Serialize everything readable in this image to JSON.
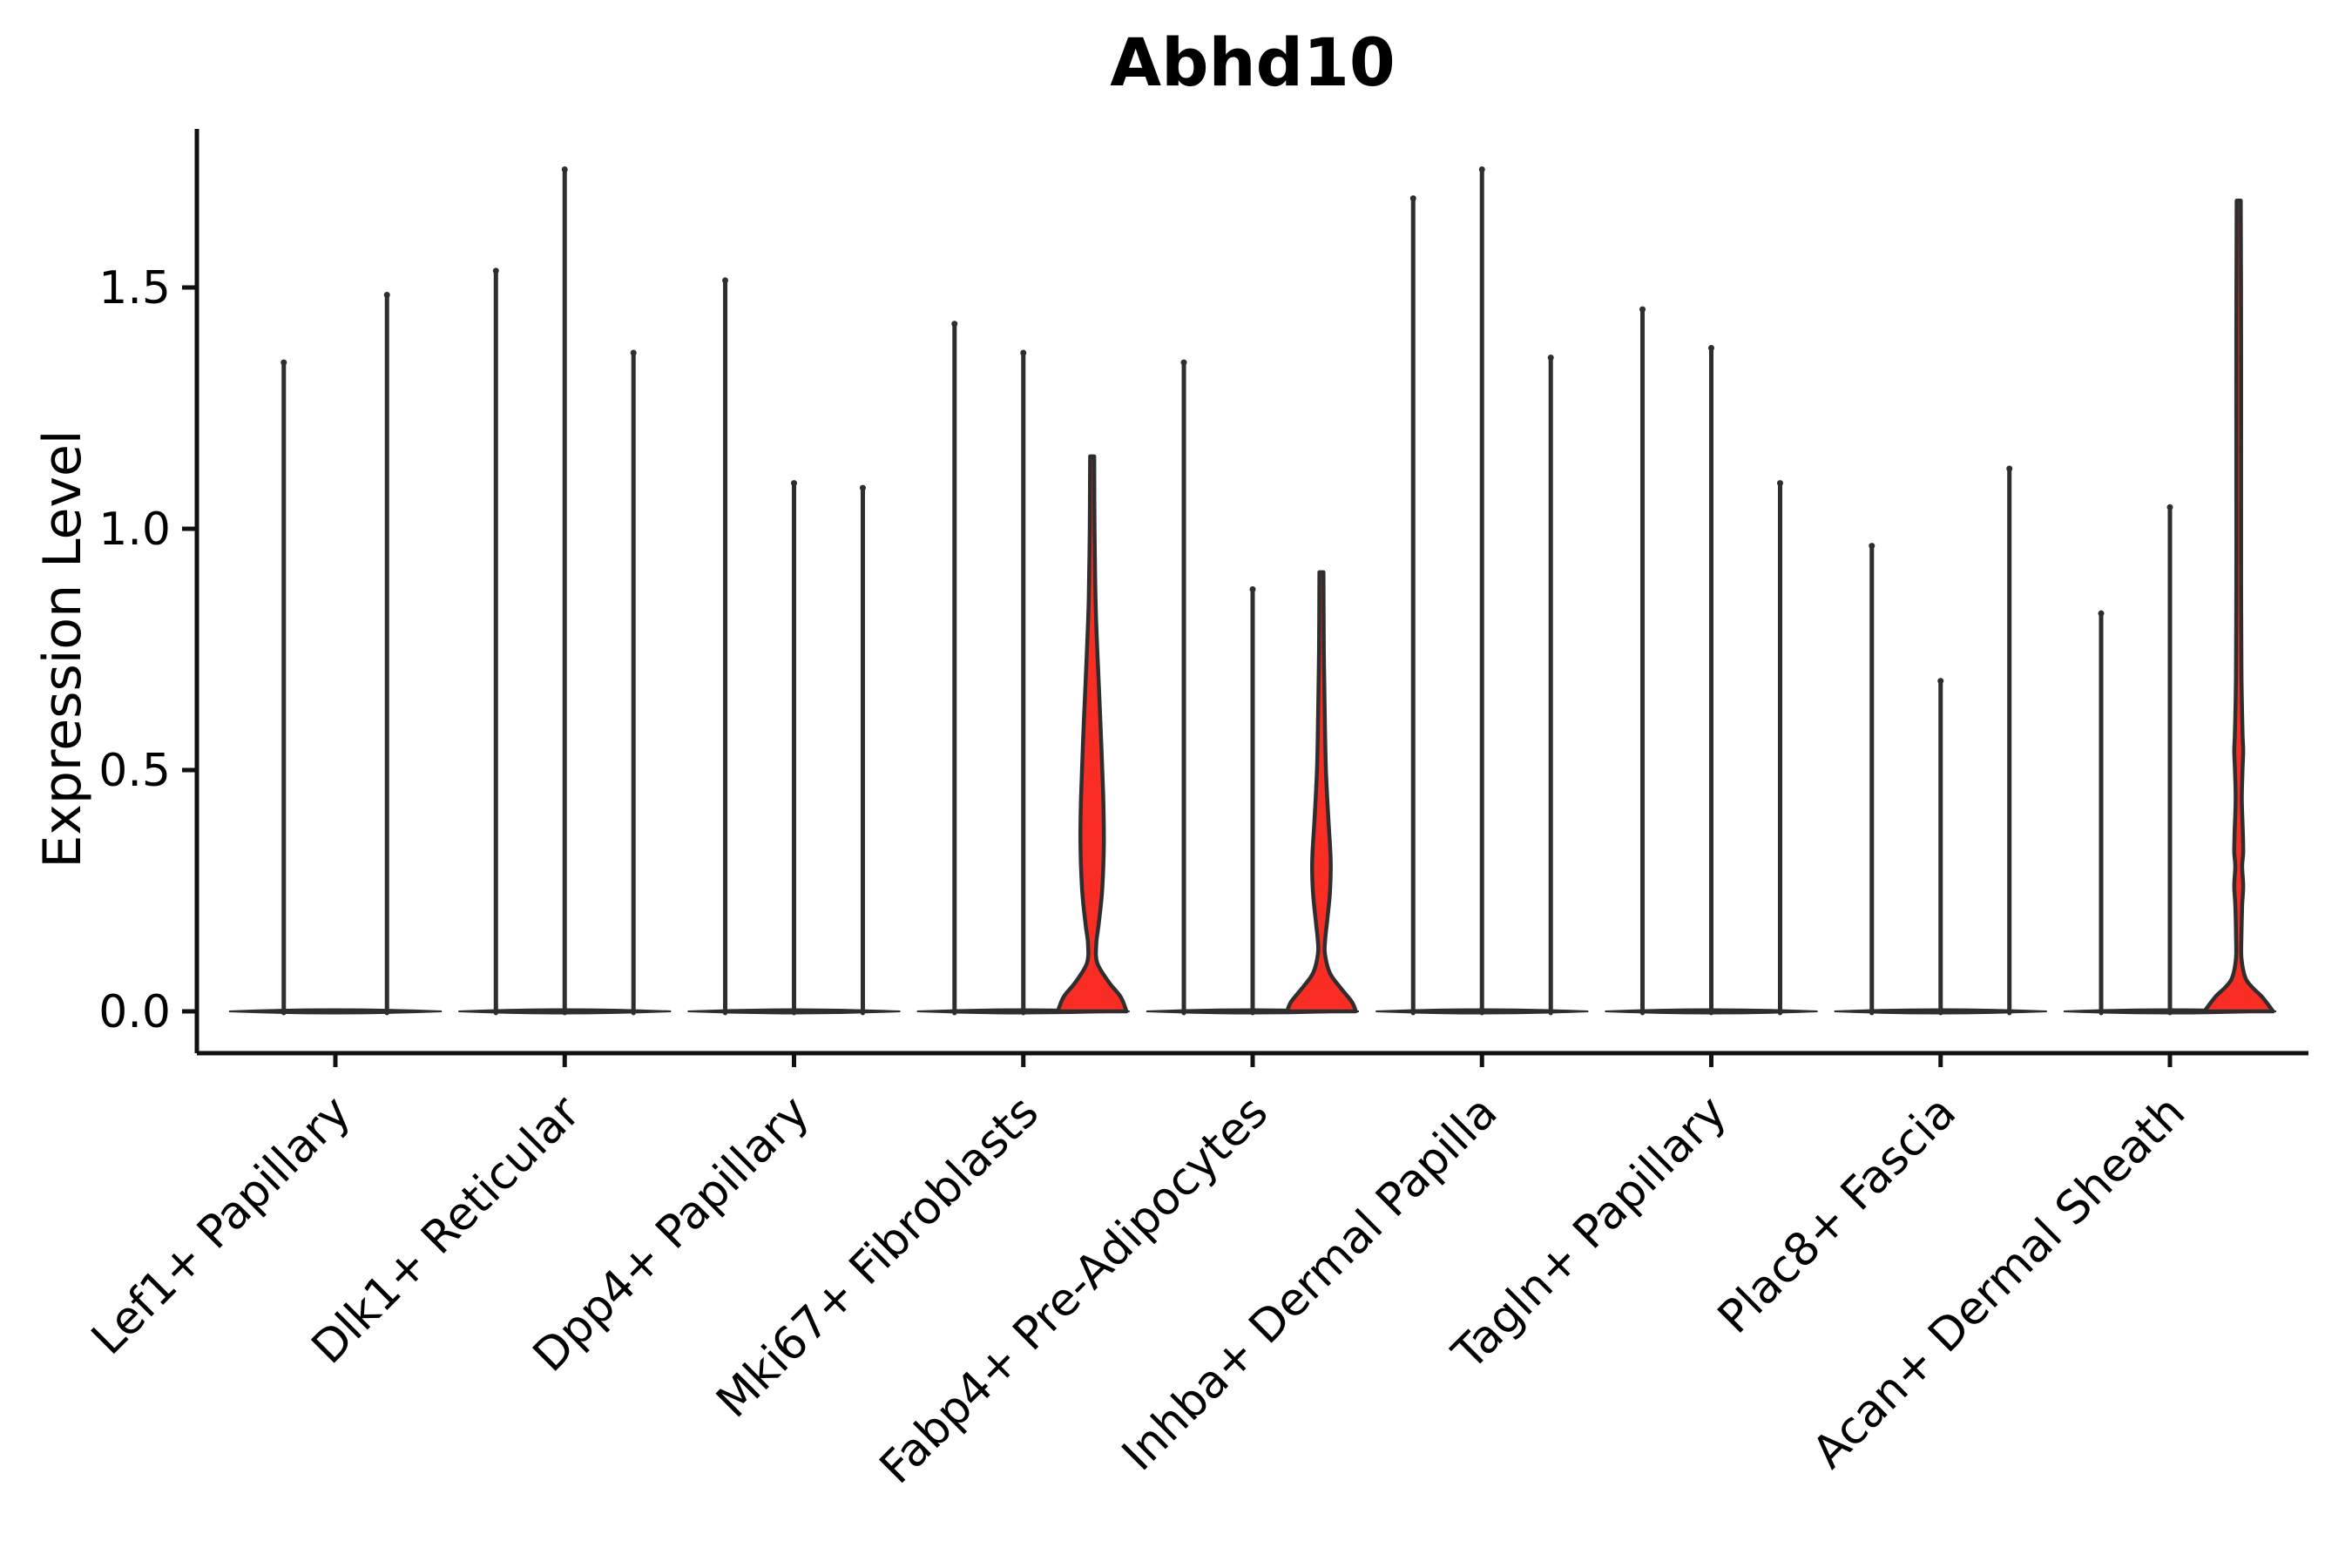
{
  "figure": {
    "title": "Abhd10",
    "ylabel": "Expression Level",
    "background": "#ffffff"
  },
  "colors": {
    "violin_outline": "#2e2e2e",
    "violin_fill_red": "#fa2d25",
    "axis": "#111111",
    "text": "#000000"
  },
  "chart_data": {
    "type": "violin",
    "title": "Abhd10",
    "xlabel": "",
    "ylabel": "Expression Level",
    "yticks": [
      "0.0",
      "0.5",
      "1.0",
      "1.5"
    ],
    "ytick_values": [
      0.0,
      0.5,
      1.0,
      1.5
    ],
    "ylim": [
      -0.09,
      1.83
    ],
    "grid": false,
    "legend": "none",
    "categories": [
      "Lef1+ Papillary",
      "Dlk1+ Reticular",
      "Dpp4+ Papillary",
      "Mki67+ Fibroblasts",
      "Fabp4+ Pre-Adipocytes",
      "Inhba+ Dermal Papilla",
      "Tagln+ Papillary",
      "Plac8+ Fascia",
      "Acan+ Dermal Sheath"
    ],
    "groups": [
      {
        "category": "Lef1+ Papillary",
        "violins": [
          {
            "max": 1.35,
            "fill": "none"
          },
          {
            "max": 1.49,
            "fill": "none"
          }
        ]
      },
      {
        "category": "Dlk1+ Reticular",
        "violins": [
          {
            "max": 1.54,
            "fill": "none"
          },
          {
            "max": 1.75,
            "fill": "none"
          },
          {
            "max": 1.37,
            "fill": "none"
          }
        ]
      },
      {
        "category": "Dpp4+ Papillary",
        "violins": [
          {
            "max": 1.52,
            "fill": "none"
          },
          {
            "max": 1.1,
            "fill": "none"
          },
          {
            "max": 1.09,
            "fill": "none"
          }
        ]
      },
      {
        "category": "Mki67+ Fibroblasts",
        "violins": [
          {
            "max": 1.43,
            "fill": "none"
          },
          {
            "max": 1.37,
            "fill": "none"
          },
          {
            "max": 1.15,
            "fill": "red",
            "profile": [
              [
                1.15,
                0.06
              ],
              [
                1.0,
                0.07
              ],
              [
                0.85,
                0.1
              ],
              [
                0.75,
                0.15
              ],
              [
                0.6,
                0.24
              ],
              [
                0.45,
                0.32
              ],
              [
                0.35,
                0.34
              ],
              [
                0.25,
                0.29
              ],
              [
                0.18,
                0.19
              ],
              [
                0.14,
                0.12
              ],
              [
                0.1,
                0.15
              ],
              [
                0.06,
                0.49
              ],
              [
                0.03,
                0.83
              ],
              [
                0.0,
                1.0
              ]
            ]
          }
        ]
      },
      {
        "category": "Fabp4+ Pre-Adipocytes",
        "violins": [
          {
            "max": 1.35,
            "fill": "none"
          },
          {
            "max": 0.88,
            "fill": "none"
          },
          {
            "max": 0.91,
            "fill": "red",
            "profile": [
              [
                0.91,
                0.06
              ],
              [
                0.75,
                0.07
              ],
              [
                0.6,
                0.1
              ],
              [
                0.5,
                0.13
              ],
              [
                0.4,
                0.2
              ],
              [
                0.33,
                0.26
              ],
              [
                0.29,
                0.27
              ],
              [
                0.24,
                0.24
              ],
              [
                0.19,
                0.17
              ],
              [
                0.15,
                0.11
              ],
              [
                0.12,
                0.1
              ],
              [
                0.08,
                0.24
              ],
              [
                0.05,
                0.54
              ],
              [
                0.02,
                0.88
              ],
              [
                0.0,
                1.0
              ]
            ]
          }
        ]
      },
      {
        "category": "Inhba+ Dermal Papilla",
        "violins": [
          {
            "max": 1.69,
            "fill": "none"
          },
          {
            "max": 1.75,
            "fill": "none"
          },
          {
            "max": 1.36,
            "fill": "none"
          }
        ]
      },
      {
        "category": "Tagln+ Papillary",
        "violins": [
          {
            "max": 1.46,
            "fill": "none"
          },
          {
            "max": 1.38,
            "fill": "none"
          },
          {
            "max": 1.1,
            "fill": "none"
          }
        ]
      },
      {
        "category": "Plac8+ Fascia",
        "violins": [
          {
            "max": 0.97,
            "fill": "none"
          },
          {
            "max": 0.69,
            "fill": "none"
          },
          {
            "max": 1.13,
            "fill": "none"
          }
        ]
      },
      {
        "category": "Acan+ Dermal Sheath",
        "violins": [
          {
            "max": 0.83,
            "fill": "none"
          },
          {
            "max": 1.05,
            "fill": "none"
          },
          {
            "max": 1.68,
            "fill": "red",
            "profile": [
              [
                1.68,
                0.06
              ],
              [
                1.4,
                0.07
              ],
              [
                1.1,
                0.07
              ],
              [
                0.9,
                0.07
              ],
              [
                0.7,
                0.08
              ],
              [
                0.58,
                0.11
              ],
              [
                0.54,
                0.13
              ],
              [
                0.5,
                0.11
              ],
              [
                0.44,
                0.09
              ],
              [
                0.37,
                0.12
              ],
              [
                0.33,
                0.13
              ],
              [
                0.3,
                0.1
              ],
              [
                0.26,
                0.13
              ],
              [
                0.22,
                0.1
              ],
              [
                0.16,
                0.08
              ],
              [
                0.11,
                0.08
              ],
              [
                0.07,
                0.19
              ],
              [
                0.05,
                0.39
              ],
              [
                0.03,
                0.68
              ],
              [
                0.0,
                1.0
              ]
            ]
          }
        ]
      }
    ]
  }
}
